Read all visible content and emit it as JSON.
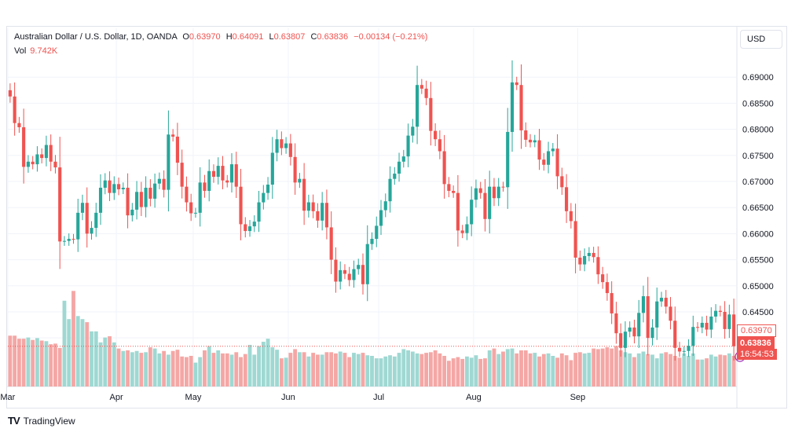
{
  "legend": {
    "symbol": "Australian Dollar / U.S. Dollar, 1D, OANDA",
    "o_label": "O",
    "o_value": "0.63970",
    "h_label": "H",
    "h_value": "0.64091",
    "l_label": "L",
    "l_value": "0.63807",
    "c_label": "C",
    "c_value": "0.63836",
    "change": "−0.00134 (−0.21%)",
    "vol_label": "Vol",
    "vol_value": "9.742K"
  },
  "currency_button": "USD",
  "price_tags": {
    "open": "0.63970",
    "close": "0.63836",
    "timer": "16:54:53"
  },
  "brand": "TradingView",
  "colors": {
    "up": "#26a69a",
    "down": "#ef5350",
    "up_vol": "#9fd8d2",
    "down_vol": "#f4a7a5"
  },
  "chart_data": {
    "type": "candlestick",
    "y_axis_ticks": [
      0.69,
      0.685,
      0.68,
      0.675,
      0.67,
      0.665,
      0.66,
      0.655,
      0.65,
      0.645,
      0.64
    ],
    "y_tick_labels": [
      "0.69000",
      "0.68500",
      "0.68000",
      "0.67500",
      "0.67000",
      "0.66500",
      "0.66000",
      "0.65500",
      "0.65000",
      "0.64500"
    ],
    "ylim": [
      0.634,
      0.6935
    ],
    "x_month_labels": [
      "Mar",
      "Apr",
      "May",
      "Jun",
      "Jul",
      "Aug",
      "Sep"
    ],
    "month_start_index": [
      0,
      24,
      41,
      62,
      82,
      103,
      126
    ],
    "closes": [
      0.6863,
      0.6812,
      0.6804,
      0.6728,
      0.6738,
      0.6733,
      0.6752,
      0.6745,
      0.677,
      0.6738,
      0.6727,
      0.6585,
      0.6586,
      0.659,
      0.6589,
      0.664,
      0.6659,
      0.66,
      0.6611,
      0.664,
      0.6688,
      0.6702,
      0.6678,
      0.6695,
      0.6685,
      0.6688,
      0.6635,
      0.6646,
      0.668,
      0.6651,
      0.6688,
      0.6667,
      0.6696,
      0.6705,
      0.6684,
      0.679,
      0.6786,
      0.6736,
      0.669,
      0.666,
      0.6639,
      0.664,
      0.6698,
      0.6682,
      0.672,
      0.6709,
      0.673,
      0.6702,
      0.6698,
      0.6733,
      0.669,
      0.6618,
      0.6605,
      0.6614,
      0.6623,
      0.666,
      0.6678,
      0.6694,
      0.6755,
      0.6781,
      0.6764,
      0.6773,
      0.6747,
      0.6698,
      0.6705,
      0.6644,
      0.666,
      0.6643,
      0.6625,
      0.6659,
      0.6612,
      0.655,
      0.6508,
      0.653,
      0.6523,
      0.6511,
      0.6532,
      0.654,
      0.6503,
      0.658,
      0.659,
      0.6615,
      0.6645,
      0.6662,
      0.6705,
      0.6715,
      0.6738,
      0.6748,
      0.6788,
      0.6805,
      0.6885,
      0.6878,
      0.686,
      0.6797,
      0.6781,
      0.6758,
      0.6695,
      0.6682,
      0.6678,
      0.6606,
      0.6601,
      0.6618,
      0.6665,
      0.6687,
      0.6678,
      0.6628,
      0.669,
      0.6668,
      0.669,
      0.6689,
      0.6795,
      0.689,
      0.6885,
      0.6798,
      0.678,
      0.6775,
      0.6779,
      0.6742,
      0.6732,
      0.6758,
      0.6763,
      0.671,
      0.6689,
      0.6643,
      0.6624,
      0.6554,
      0.6541,
      0.6557,
      0.6563,
      0.6555,
      0.6522,
      0.6507,
      0.6486,
      0.6447,
      0.6409,
      0.6381,
      0.6412,
      0.642,
      0.6403,
      0.6448,
      0.648,
      0.64,
      0.642,
      0.647,
      0.6477,
      0.646,
      0.6433,
      0.6381,
      0.6374,
      0.6375,
      0.6385,
      0.6421,
      0.642,
      0.6429,
      0.6416,
      0.6441,
      0.6452,
      0.645,
      0.6417,
      0.6445,
      0.6384
    ],
    "volume_relative": [
      0.83,
      0.83,
      0.78,
      0.78,
      0.8,
      0.76,
      0.79,
      0.75,
      0.74,
      0.69,
      0.7,
      0.63,
      1.4,
      1.1,
      1.56,
      1.15,
      1.1,
      1.05,
      0.9,
      0.9,
      0.72,
      0.8,
      0.82,
      0.72,
      0.62,
      0.58,
      0.59,
      0.56,
      0.58,
      0.55,
      0.56,
      0.64,
      0.62,
      0.54,
      0.58,
      0.52,
      0.58,
      0.6,
      0.49,
      0.48,
      0.5,
      0.39,
      0.48,
      0.59,
      0.66,
      0.55,
      0.59,
      0.54,
      0.54,
      0.52,
      0.56,
      0.48,
      0.53,
      0.68,
      0.52,
      0.66,
      0.73,
      0.78,
      0.64,
      0.6,
      0.46,
      0.47,
      0.55,
      0.61,
      0.56,
      0.56,
      0.49,
      0.55,
      0.52,
      0.52,
      0.56,
      0.56,
      0.54,
      0.57,
      0.55,
      0.48,
      0.55,
      0.53,
      0.55,
      0.51,
      0.5,
      0.46,
      0.46,
      0.49,
      0.51,
      0.49,
      0.55,
      0.61,
      0.59,
      0.57,
      0.54,
      0.53,
      0.55,
      0.56,
      0.59,
      0.54,
      0.5,
      0.42,
      0.46,
      0.48,
      0.45,
      0.49,
      0.47,
      0.51,
      0.45,
      0.46,
      0.59,
      0.62,
      0.53,
      0.57,
      0.61,
      0.62,
      0.54,
      0.59,
      0.59,
      0.54,
      0.55,
      0.49,
      0.53,
      0.54,
      0.5,
      0.47,
      0.54,
      0.51,
      0.43,
      0.55,
      0.56,
      0.54,
      0.55,
      0.62,
      0.61,
      0.62,
      0.64,
      0.62,
      0.66,
      0.59,
      0.56,
      0.54,
      0.48,
      0.54,
      0.57,
      0.53,
      0.52,
      0.46,
      0.54,
      0.56,
      0.53,
      0.5,
      0.47,
      0.54,
      0.5,
      0.54,
      0.44,
      0.44,
      0.46,
      0.52,
      0.49,
      0.52,
      0.51,
      0.54,
      0.5,
      0.47
    ]
  }
}
